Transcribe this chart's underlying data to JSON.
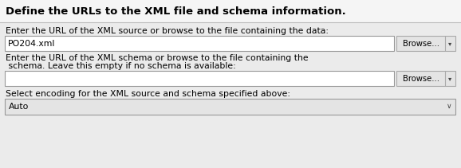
{
  "bg_color": "#ebebeb",
  "header_bg": "#f5f5f5",
  "header_text": "Define the URLs to the XML file and schema information.",
  "header_fontsize": 9.5,
  "label1": "Enter the URL of the XML source or browse to the file containing the data:",
  "label2_line1": "Enter the URL of the XML schema or browse to the file containing the",
  "label2_line2": " schema. Leave this empty if no schema is available:",
  "label3": "Select encoding for the XML source and schema specified above:",
  "field1_text": "PO204.xml",
  "field3_text": "Auto",
  "browse_text": "Browse...",
  "label_fontsize": 7.8,
  "field_fontsize": 7.8,
  "field_bg": "#ffffff",
  "field_border": "#999999",
  "browse_bg": "#e4e4e4",
  "browse_border": "#aaaaaa",
  "dropdown_bg": "#e4e4e4",
  "separator_color": "#bbbbbb",
  "text_color": "#000000",
  "arrow_color": "#444444"
}
